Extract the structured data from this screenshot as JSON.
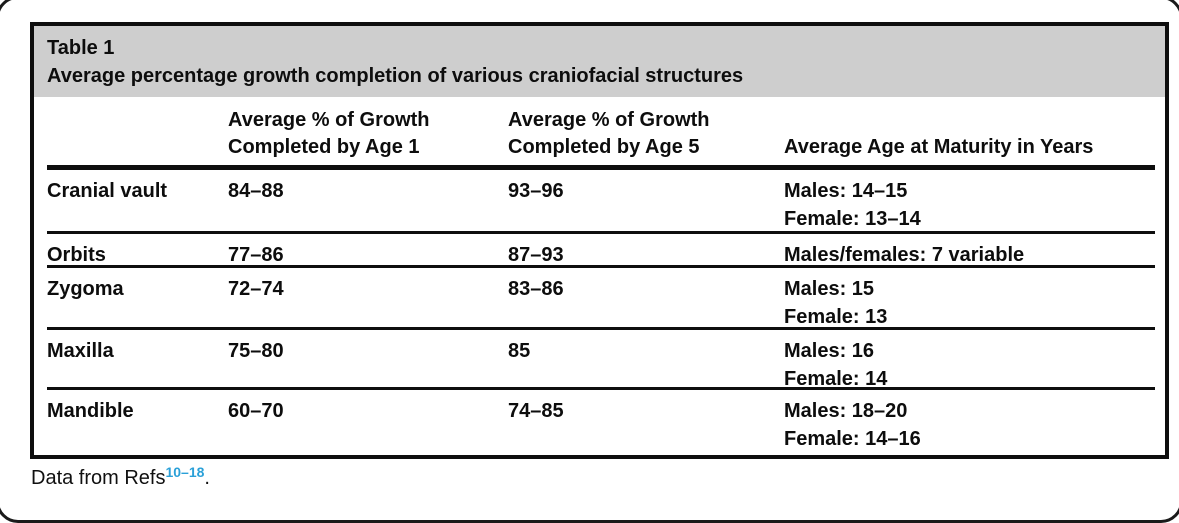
{
  "colors": {
    "band_gray": "#cecece",
    "rule_black": "#0e0e0e",
    "ref_blue": "#2aa0d8"
  },
  "table": {
    "label": "Table 1",
    "caption": "Average percentage growth completion of various craniofacial structures",
    "headers": {
      "structure": "",
      "age1_line1": "Average % of Growth",
      "age1_line2": "Completed by Age 1",
      "age5_line1": "Average % of Growth",
      "age5_line2": "Completed by Age 5",
      "maturity": "Average Age at Maturity in Years"
    },
    "rows": [
      {
        "structure": "Cranial vault",
        "age1": "84–88",
        "age5": "93–96",
        "maturity": [
          "Males: 14–15",
          "Female: 13–14"
        ]
      },
      {
        "structure": "Orbits",
        "age1": "77–86",
        "age5": "87–93",
        "maturity": [
          "Males/females: 7 variable"
        ]
      },
      {
        "structure": "Zygoma",
        "age1": "72–74",
        "age5": "83–86",
        "maturity": [
          "Males: 15",
          "Female: 13"
        ]
      },
      {
        "structure": "Maxilla",
        "age1": "75–80",
        "age5": "85",
        "maturity": [
          "Males: 16",
          "Female: 14"
        ]
      },
      {
        "structure": "Mandible",
        "age1": "60–70",
        "age5": "74–85",
        "maturity": [
          "Males: 18–20",
          "Female: 14–16"
        ]
      }
    ]
  },
  "footnote": {
    "text": "Data from Refs",
    "reference_range": "10–18",
    "period": "."
  }
}
